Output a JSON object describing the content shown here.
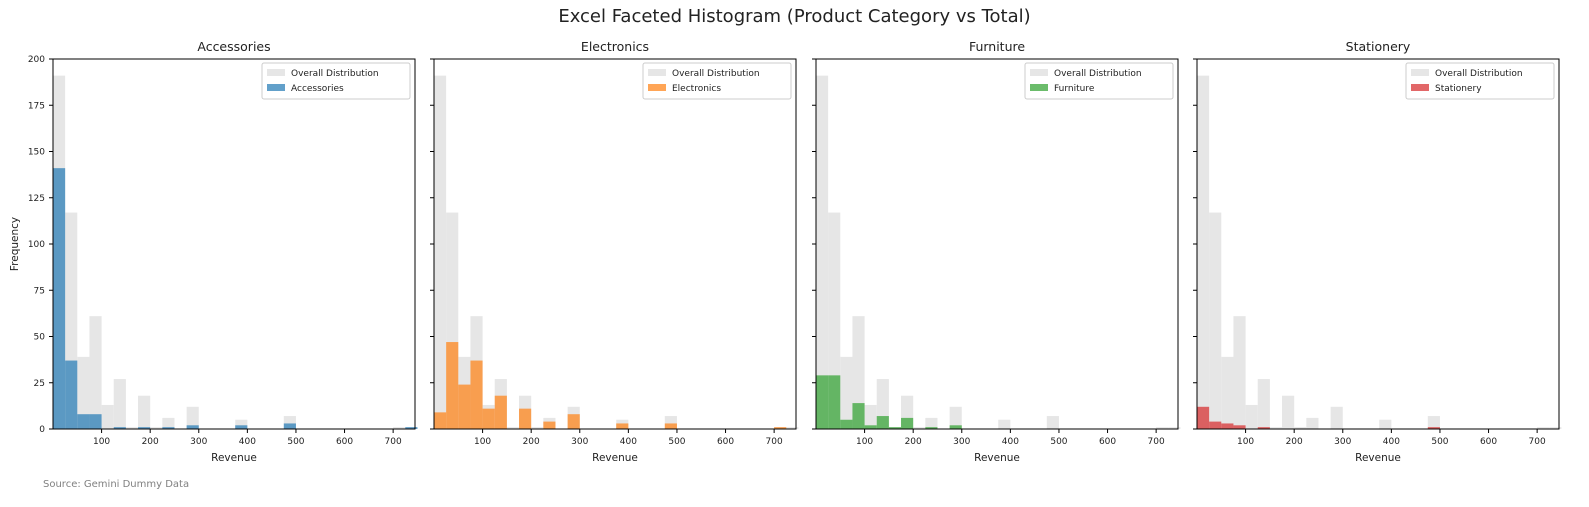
{
  "figure": {
    "title": "Excel Faceted Histogram (Product Category vs Total)",
    "source_note": "Source: Gemini Dummy Data"
  },
  "colors": {
    "overall": "#e6e6e6",
    "Accessories": "#1f77b4",
    "Electronics": "#ff7f0e",
    "Furniture": "#2ca02c",
    "Stationery": "#d62728",
    "axis": "#000000"
  },
  "chart_data": {
    "type": "bar",
    "layout": "faceted-histogram",
    "xlabel": "Revenue",
    "ylabel": "Frequency",
    "xlim": [
      0,
      745
    ],
    "ylim": [
      0,
      200
    ],
    "xticks": [
      100,
      200,
      300,
      400,
      500,
      600,
      700
    ],
    "yticks": [
      0,
      25,
      50,
      75,
      100,
      125,
      150,
      175,
      200
    ],
    "bin_width": 25,
    "bin_start": 0,
    "legend_position": "top-right",
    "overall_label": "Overall Distribution",
    "overall_counts": [
      191,
      117,
      39,
      61,
      13,
      27,
      1,
      18,
      1,
      6,
      0,
      12,
      0,
      0,
      0,
      5,
      0,
      0,
      0,
      7,
      0,
      0,
      0,
      0,
      0,
      0,
      0,
      0,
      1,
      1
    ],
    "facets": [
      {
        "title": "Accessories",
        "counts": [
          141,
          37,
          8,
          8,
          0,
          1,
          0,
          1,
          0,
          1,
          0,
          2,
          0,
          0,
          0,
          2,
          0,
          0,
          0,
          3,
          0,
          0,
          0,
          0,
          0,
          0,
          0,
          0,
          0,
          1
        ]
      },
      {
        "title": "Electronics",
        "counts": [
          9,
          47,
          24,
          37,
          11,
          18,
          0,
          11,
          0,
          4,
          0,
          8,
          0,
          0,
          0,
          3,
          0,
          0,
          0,
          3,
          0,
          0,
          0,
          0,
          0,
          0,
          0,
          0,
          1,
          0
        ]
      },
      {
        "title": "Furniture",
        "counts": [
          29,
          29,
          5,
          14,
          2,
          7,
          1,
          6,
          0,
          1,
          0,
          2,
          0,
          0,
          0,
          0,
          0,
          0,
          0,
          0,
          0,
          0,
          0,
          0,
          0,
          0,
          0,
          0,
          0,
          0
        ]
      },
      {
        "title": "Stationery",
        "counts": [
          12,
          4,
          3,
          2,
          0,
          1,
          0,
          0,
          0,
          0,
          0,
          0,
          0,
          0,
          0,
          0,
          0,
          0,
          0,
          1,
          0,
          0,
          0,
          0,
          0,
          0,
          0,
          0,
          0,
          0
        ]
      }
    ]
  }
}
